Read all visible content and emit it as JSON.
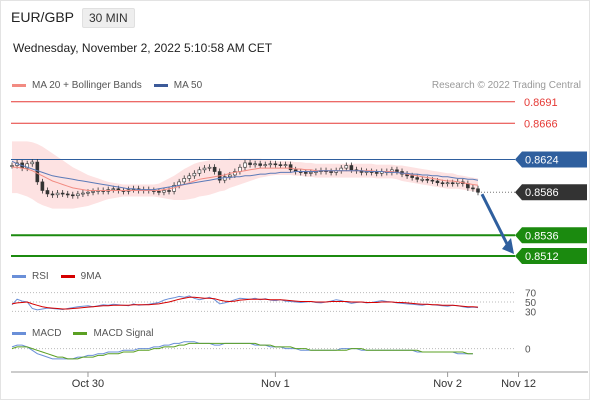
{
  "header": {
    "symbol": "EUR/GBP",
    "interval": "30 MIN",
    "timestamp": "Wednesday, November 2, 2022 5:10:58 AM CET",
    "copyright": "Research © 2022 Trading Central"
  },
  "legends": {
    "price": [
      {
        "label": "MA 20 + Bollinger Bands",
        "color": "#f28b82"
      },
      {
        "label": "MA 50",
        "color": "#3c5a99"
      }
    ],
    "rsi": [
      {
        "label": "RSI",
        "color": "#6a8fd8"
      },
      {
        "label": "9MA",
        "color": "#d50000"
      }
    ],
    "macd": [
      {
        "label": "MACD",
        "color": "#6a8fd8"
      },
      {
        "label": "MACD Signal",
        "color": "#5ba023"
      }
    ]
  },
  "chart_data": [
    {
      "type": "candlestick",
      "name": "price",
      "ylim": [
        0.8505,
        0.87
      ],
      "x_ticks": [
        {
          "label": "Oct 30",
          "index": 15
        },
        {
          "label": "Nov 1",
          "index": 52
        },
        {
          "label": "Nov 2",
          "index": 86
        },
        {
          "label": "Nov 12",
          "index": 100
        }
      ],
      "close": [
        0.8617,
        0.862,
        0.8614,
        0.8619,
        0.8621,
        0.8598,
        0.8588,
        0.8584,
        0.8583,
        0.8585,
        0.8584,
        0.8583,
        0.8582,
        0.8584,
        0.8585,
        0.8586,
        0.8587,
        0.8588,
        0.8587,
        0.8589,
        0.859,
        0.8588,
        0.8587,
        0.8589,
        0.859,
        0.8588,
        0.8589,
        0.8588,
        0.8587,
        0.8586,
        0.8588,
        0.8587,
        0.8594,
        0.8598,
        0.8602,
        0.8605,
        0.8608,
        0.8612,
        0.8614,
        0.8615,
        0.861,
        0.86,
        0.8604,
        0.8606,
        0.861,
        0.8615,
        0.862,
        0.8618,
        0.8619,
        0.8617,
        0.8618,
        0.8619,
        0.8618,
        0.8617,
        0.8618,
        0.8612,
        0.861,
        0.8609,
        0.8608,
        0.8609,
        0.861,
        0.8611,
        0.861,
        0.8609,
        0.8611,
        0.8614,
        0.8617,
        0.8612,
        0.8611,
        0.8609,
        0.861,
        0.8609,
        0.8608,
        0.861,
        0.8609,
        0.8612,
        0.861,
        0.8607,
        0.8605,
        0.8603,
        0.8601,
        0.8601,
        0.86,
        0.8599,
        0.8597,
        0.8596,
        0.8597,
        0.8596,
        0.8598,
        0.8596,
        0.8591,
        0.859,
        0.8586
      ],
      "ma20": [
        0.8615,
        0.8615,
        0.8614,
        0.8613,
        0.8611,
        0.8608,
        0.8605,
        0.8602,
        0.8599,
        0.8597,
        0.8595,
        0.8593,
        0.8591,
        0.859,
        0.8589,
        0.8588,
        0.8588,
        0.8588,
        0.8588,
        0.8588,
        0.8588,
        0.8588,
        0.8588,
        0.8588,
        0.8588,
        0.8588,
        0.8588,
        0.8588,
        0.8588,
        0.8588,
        0.8589,
        0.859,
        0.8591,
        0.8593,
        0.8595,
        0.8597,
        0.8599,
        0.8601,
        0.8602,
        0.8603,
        0.8604,
        0.8605,
        0.8606,
        0.8608,
        0.8609,
        0.861,
        0.8611,
        0.8612,
        0.8613,
        0.8614,
        0.8614,
        0.8614,
        0.8614,
        0.8614,
        0.8614,
        0.8614,
        0.8613,
        0.8613,
        0.8612,
        0.8612,
        0.8611,
        0.8611,
        0.8611,
        0.8611,
        0.8611,
        0.8611,
        0.8611,
        0.8611,
        0.8611,
        0.8611,
        0.8611,
        0.8611,
        0.861,
        0.861,
        0.861,
        0.861,
        0.8609,
        0.8608,
        0.8607,
        0.8606,
        0.8605,
        0.8604,
        0.8603,
        0.8602,
        0.8601,
        0.86,
        0.8599,
        0.8599,
        0.8598,
        0.8597,
        0.8596,
        0.8595,
        0.8594
      ],
      "ma50": [
        0.8622,
        0.8619,
        0.8617,
        0.8615,
        0.8613,
        0.8611,
        0.8609,
        0.8607,
        0.8605,
        0.8604,
        0.8603,
        0.8602,
        0.8601,
        0.86,
        0.8599,
        0.8598,
        0.8597,
        0.8596,
        0.8595,
        0.8594,
        0.8593,
        0.8592,
        0.8591,
        0.859,
        0.859,
        0.8589,
        0.8589,
        0.8589,
        0.8589,
        0.859,
        0.8591,
        0.8592,
        0.8593,
        0.8594,
        0.8595,
        0.8596,
        0.8597,
        0.8598,
        0.8599,
        0.86,
        0.8601,
        0.8602,
        0.8603,
        0.8603,
        0.8604,
        0.8604,
        0.8605,
        0.8605,
        0.8606,
        0.8607,
        0.8607,
        0.8608,
        0.8608,
        0.8609,
        0.8609,
        0.8609,
        0.861,
        0.861,
        0.861,
        0.861,
        0.861,
        0.8611,
        0.8611,
        0.8611,
        0.8611,
        0.8611,
        0.8611,
        0.8611,
        0.8611,
        0.8611,
        0.861,
        0.861,
        0.861,
        0.861,
        0.8609,
        0.8609,
        0.8609,
        0.8608,
        0.8608,
        0.8607,
        0.8607,
        0.8606,
        0.8606,
        0.8605,
        0.8605,
        0.8604,
        0.8604,
        0.8603,
        0.8602,
        0.8602,
        0.8601,
        0.8601,
        0.86
      ],
      "band_width": [
        0.003,
        0.003,
        0.0031,
        0.0032,
        0.0033,
        0.0034,
        0.0034,
        0.0033,
        0.0032,
        0.003,
        0.0028,
        0.0026,
        0.0024,
        0.0022,
        0.002,
        0.0018,
        0.0016,
        0.0014,
        0.0012,
        0.001,
        0.0009,
        0.0008,
        0.0007,
        0.0007,
        0.0007,
        0.0007,
        0.0007,
        0.0007,
        0.0007,
        0.0008,
        0.001,
        0.0012,
        0.0014,
        0.0016,
        0.0018,
        0.0019,
        0.002,
        0.002,
        0.002,
        0.002,
        0.0019,
        0.0018,
        0.0018,
        0.0017,
        0.0016,
        0.0015,
        0.0014,
        0.0013,
        0.0012,
        0.0011,
        0.001,
        0.0009,
        0.0008,
        0.0008,
        0.0008,
        0.0008,
        0.0008,
        0.0008,
        0.0008,
        0.0008,
        0.0008,
        0.0008,
        0.0008,
        0.0008,
        0.0008,
        0.0008,
        0.0008,
        0.0008,
        0.0008,
        0.0008,
        0.0008,
        0.0008,
        0.0008,
        0.0008,
        0.0008,
        0.0008,
        0.0008,
        0.0009,
        0.0009,
        0.0009,
        0.0009,
        0.0009,
        0.0009,
        0.0009,
        0.0009,
        0.0009,
        0.0009,
        0.0009,
        0.0008,
        0.0008,
        0.0008,
        0.0008,
        0.0008
      ],
      "levels": [
        {
          "value": 0.8691,
          "label": "0.8691",
          "kind": "resistance"
        },
        {
          "value": 0.8666,
          "label": "0.8666",
          "kind": "resistance"
        },
        {
          "value": 0.8624,
          "label": "0.8624",
          "kind": "pivot"
        },
        {
          "value": 0.8586,
          "label": "0.8586",
          "kind": "last"
        },
        {
          "value": 0.8536,
          "label": "0.8536",
          "kind": "support"
        },
        {
          "value": 0.8512,
          "label": "0.8512",
          "kind": "support"
        }
      ],
      "projection": {
        "from": 0.8586,
        "to": 0.8512,
        "colors": {
          "arrow": "#2f5f9e"
        }
      }
    },
    {
      "type": "line",
      "name": "rsi",
      "ylim": [
        20,
        80
      ],
      "y_ticks": [
        70,
        50,
        30
      ],
      "series": [
        {
          "name": "RSI",
          "values": [
            44,
            56,
            52,
            50,
            36,
            33,
            35,
            37,
            36,
            35,
            34,
            36,
            38,
            40,
            41,
            42,
            40,
            42,
            44,
            43,
            45,
            44,
            43,
            42,
            46,
            43,
            44,
            45,
            47,
            49,
            54,
            57,
            59,
            62,
            60,
            63,
            58,
            55,
            57,
            60,
            55,
            46,
            48,
            51,
            55,
            58,
            57,
            56,
            58,
            55,
            57,
            54,
            53,
            55,
            52,
            51,
            50,
            49,
            50,
            51,
            49,
            48,
            50,
            52,
            55,
            53,
            50,
            47,
            49,
            50,
            48,
            49,
            51,
            53,
            51,
            50,
            48,
            47,
            46,
            45,
            44,
            43,
            45,
            44,
            43,
            42,
            41,
            43,
            42,
            40,
            38,
            39,
            38
          ]
        },
        {
          "name": "9MA",
          "values": [
            46,
            48,
            49,
            50,
            46,
            43,
            40,
            38,
            37,
            36,
            35,
            35,
            36,
            37,
            38,
            39,
            40,
            41,
            42,
            42,
            43,
            43,
            43,
            43,
            44,
            44,
            44,
            44,
            45,
            46,
            48,
            50,
            53,
            56,
            58,
            60,
            60,
            59,
            58,
            58,
            57,
            54,
            52,
            51,
            52,
            54,
            55,
            56,
            56,
            56,
            56,
            55,
            55,
            55,
            54,
            53,
            52,
            51,
            51,
            51,
            50,
            50,
            50,
            51,
            51,
            51,
            51,
            50,
            50,
            50,
            49,
            49,
            49,
            50,
            50,
            50,
            49,
            49,
            48,
            47,
            46,
            45,
            45,
            44,
            44,
            43,
            43,
            43,
            42,
            41,
            40,
            40,
            39
          ]
        }
      ]
    },
    {
      "type": "line",
      "name": "macd",
      "ylim": [
        -0.0009,
        0.0005
      ],
      "y_ticks": [
        0
      ],
      "series": [
        {
          "name": "MACD",
          "values": [
            0.0001,
            0.0002,
            0.0002,
            0.0001,
            -0.0001,
            -0.0003,
            -0.0004,
            -0.0005,
            -0.0006,
            -0.0006,
            -0.0006,
            -0.0006,
            -0.0006,
            -0.0005,
            -0.0005,
            -0.0004,
            -0.0004,
            -0.0003,
            -0.0003,
            -0.0002,
            -0.0002,
            -0.0002,
            -0.0001,
            -0.0001,
            -0.0001,
            0.0,
            0.0,
            0.0,
            0.0001,
            0.0001,
            0.0002,
            0.0002,
            0.0003,
            0.0003,
            0.0004,
            0.0004,
            0.0004,
            0.0003,
            0.0003,
            0.0003,
            0.0002,
            0.0002,
            0.0003,
            0.0003,
            0.0003,
            0.0003,
            0.0003,
            0.0003,
            0.0002,
            0.0002,
            0.0002,
            0.0001,
            0.0001,
            0.0001,
            0.0,
            0.0,
            0.0,
            -0.0001,
            -0.0001,
            -0.0001,
            -0.0001,
            -0.0001,
            -0.0001,
            -0.0001,
            -0.0001,
            0.0,
            0.0,
            0.0,
            0.0,
            -0.0001,
            -0.0001,
            -0.0001,
            -0.0001,
            -0.0001,
            -0.0001,
            -0.0001,
            -0.0001,
            -0.0001,
            -0.0001,
            -0.0001,
            -0.0002,
            -0.0002,
            -0.0002,
            -0.0002,
            -0.0002,
            -0.0002,
            -0.0002,
            -0.0002,
            -0.0003,
            -0.0003,
            -0.0003,
            -0.0003
          ]
        },
        {
          "name": "MACD Signal",
          "values": [
            0.0,
            0.0001,
            0.0001,
            0.0001,
            0.0,
            -0.0001,
            -0.0002,
            -0.0003,
            -0.0004,
            -0.0005,
            -0.0005,
            -0.0006,
            -0.0006,
            -0.0006,
            -0.0005,
            -0.0005,
            -0.0005,
            -0.0004,
            -0.0004,
            -0.0003,
            -0.0003,
            -0.0003,
            -0.0002,
            -0.0002,
            -0.0002,
            -0.0001,
            -0.0001,
            -0.0001,
            0.0,
            0.0,
            0.0001,
            0.0001,
            0.0001,
            0.0002,
            0.0002,
            0.0003,
            0.0003,
            0.0003,
            0.0003,
            0.0003,
            0.0003,
            0.0003,
            0.0003,
            0.0003,
            0.0003,
            0.0003,
            0.0003,
            0.0003,
            0.0003,
            0.0002,
            0.0002,
            0.0002,
            0.0001,
            0.0001,
            0.0001,
            0.0001,
            0.0,
            0.0,
            0.0,
            -0.0001,
            -0.0001,
            -0.0001,
            -0.0001,
            -0.0001,
            -0.0001,
            -0.0001,
            -0.0001,
            0.0,
            0.0,
            0.0,
            -0.0001,
            -0.0001,
            -0.0001,
            -0.0001,
            -0.0001,
            -0.0001,
            -0.0001,
            -0.0001,
            -0.0001,
            -0.0001,
            -0.0001,
            -0.0002,
            -0.0002,
            -0.0002,
            -0.0002,
            -0.0002,
            -0.0002,
            -0.0002,
            -0.0002,
            -0.0002,
            -0.0003,
            -0.0003
          ]
        }
      ]
    }
  ],
  "colors": {
    "resistance": "#e53935",
    "pivot": "#2f5f9e",
    "last": "#333333",
    "support": "#1b8a0f",
    "band_fill": "#fde2e2",
    "ma20": "#f28b82",
    "ma50": "#5b7ab8",
    "candle": "#333333"
  }
}
